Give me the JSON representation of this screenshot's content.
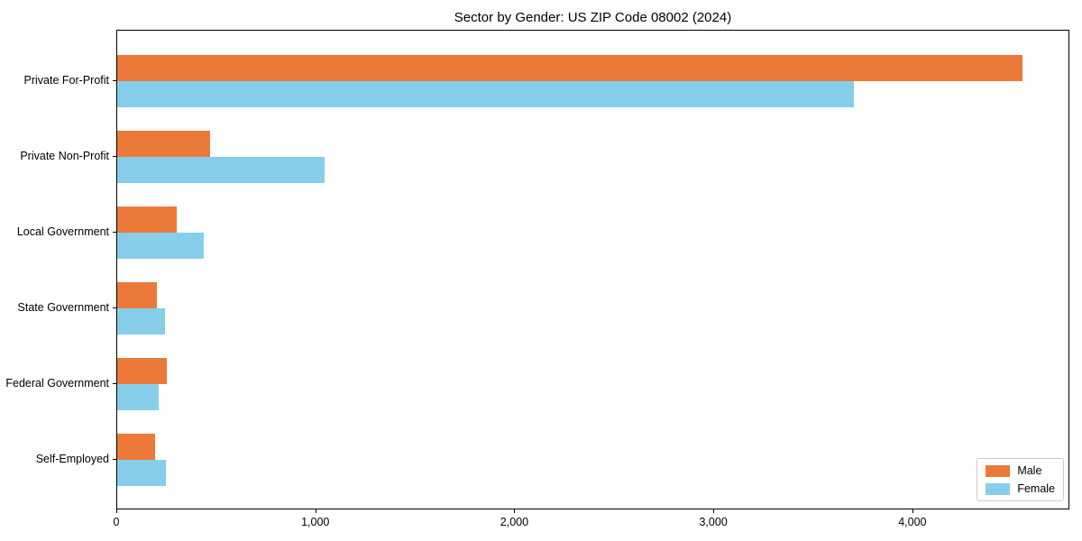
{
  "chart_data": {
    "type": "bar",
    "orientation": "horizontal",
    "title": "Sector by Gender: US ZIP Code 08002 (2024)",
    "categories": [
      "Private For-Profit",
      "Private Non-Profit",
      "Local Government",
      "State Government",
      "Federal Government",
      "Self-Employed"
    ],
    "series": [
      {
        "name": "Male",
        "color": "#eb7a38",
        "values": [
          4550,
          465,
          300,
          200,
          250,
          190
        ]
      },
      {
        "name": "Female",
        "color": "#87ceeb",
        "values": [
          3700,
          1040,
          435,
          240,
          210,
          245
        ]
      }
    ],
    "xlabel": "",
    "ylabel": "",
    "xlim": [
      0,
      4780
    ],
    "xticks": {
      "values": [
        0,
        1000,
        2000,
        3000,
        4000
      ],
      "labels": [
        "0",
        "1,000",
        "2,000",
        "3,000",
        "4,000"
      ]
    },
    "grid": false,
    "legend": {
      "position": "lower right",
      "entries": [
        "Male",
        "Female"
      ]
    },
    "colors": {
      "background": "#ffffff",
      "axis": "#000000",
      "legend_border": "#cccccc"
    }
  }
}
